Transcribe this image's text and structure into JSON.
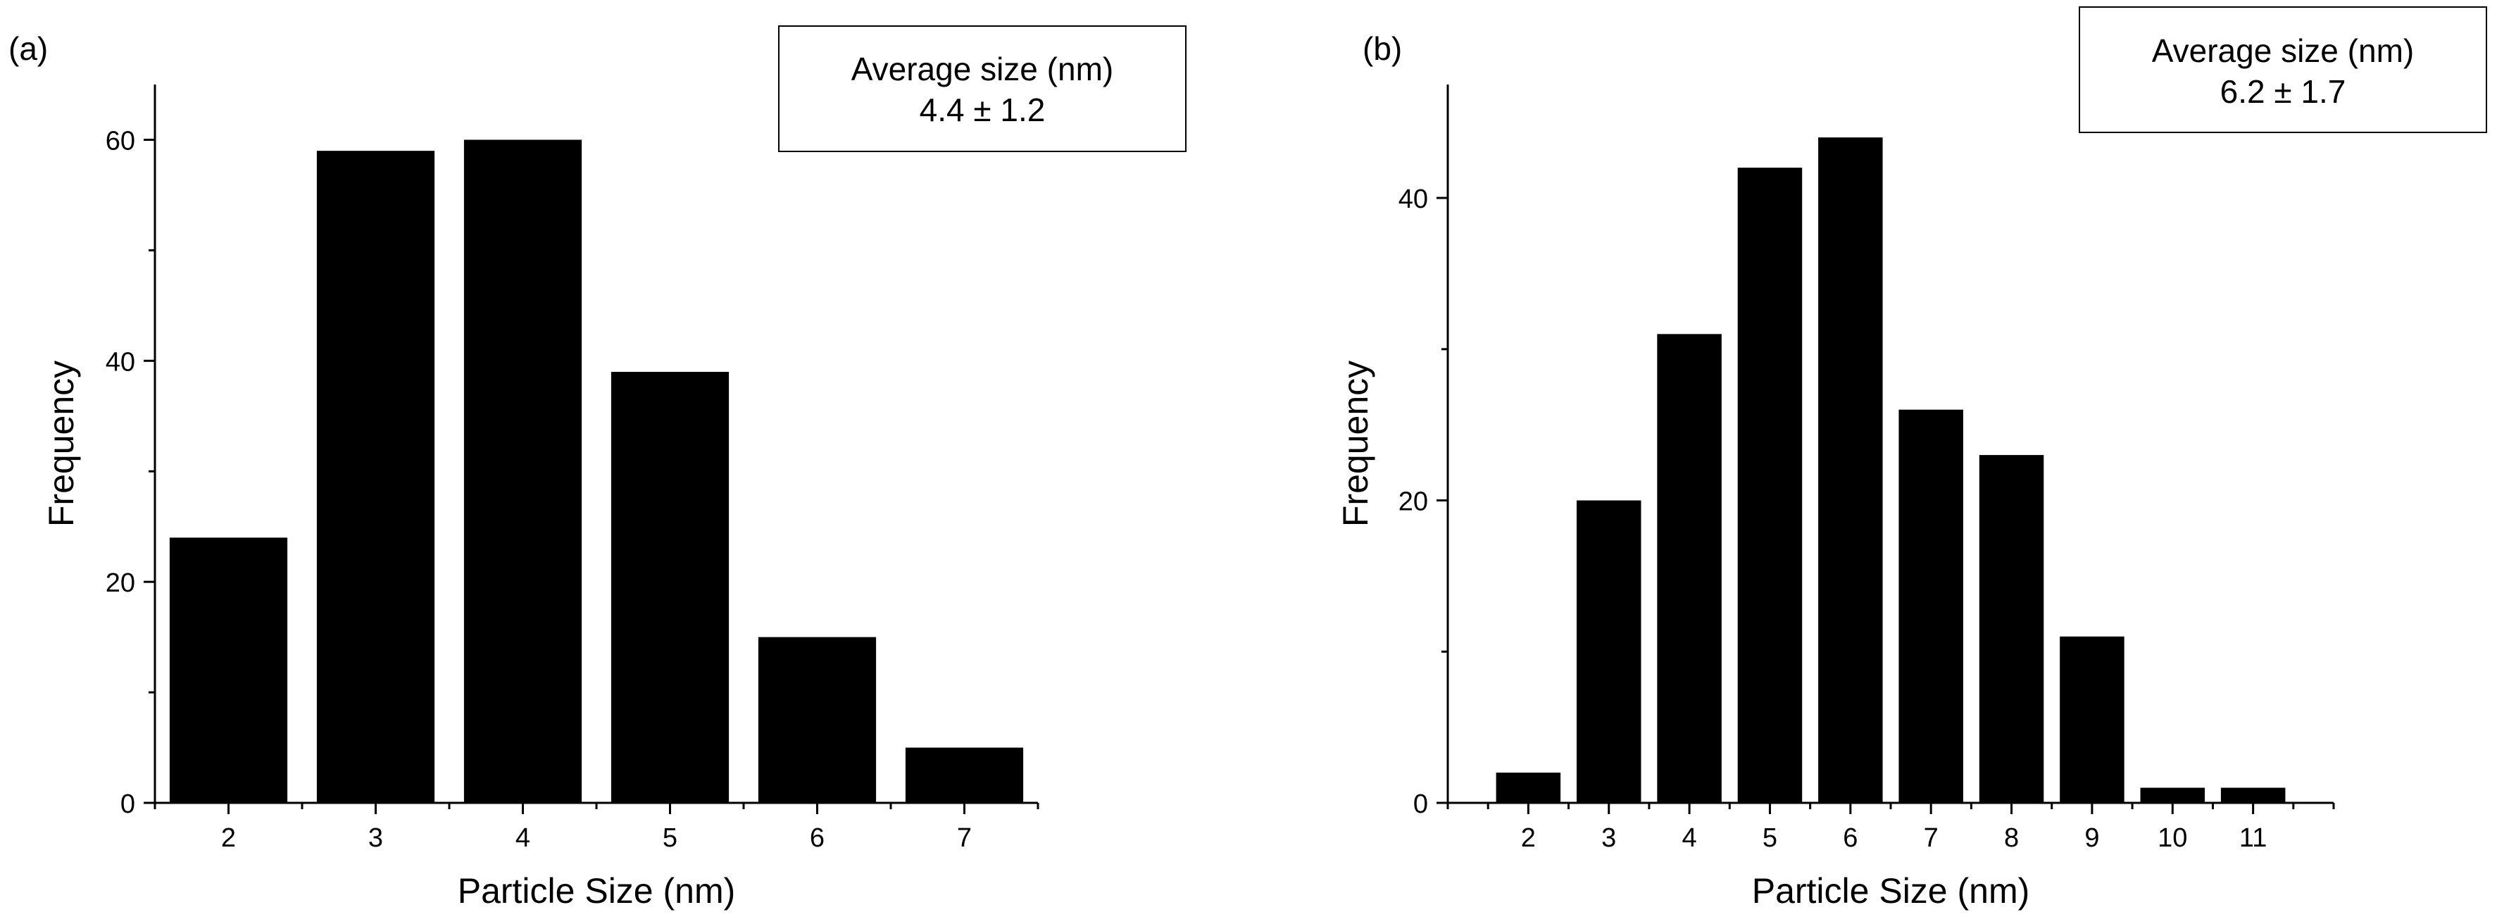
{
  "chart_data": [
    {
      "type": "bar",
      "panel_label": "(a)",
      "categories": [
        "2",
        "3",
        "4",
        "5",
        "6",
        "7"
      ],
      "values": [
        24,
        59,
        60,
        39,
        15,
        5
      ],
      "xlabel": "Particle Size (nm)",
      "ylabel": "Frequency",
      "ylim": [
        0,
        65
      ],
      "xlim": [
        1.5,
        7.5
      ],
      "y_major_ticks": [
        0,
        20,
        40,
        60
      ],
      "y_minor_ticks": [
        10,
        30,
        50
      ],
      "x_ticks": [
        2,
        3,
        4,
        5,
        6,
        7
      ],
      "bar_color": "#000000",
      "stats_box": {
        "title": "Average size (nm)",
        "value": "4.4 ± 1.2"
      }
    },
    {
      "type": "bar",
      "panel_label": "(b)",
      "categories": [
        "2",
        "3",
        "4",
        "5",
        "6",
        "7",
        "8",
        "9",
        "10",
        "11"
      ],
      "values": [
        2,
        20,
        31,
        42,
        44,
        26,
        23,
        11,
        1,
        1
      ],
      "xlabel": "Particle Size (nm)",
      "ylabel": "Frequency",
      "ylim": [
        0,
        47.5
      ],
      "xlim": [
        1.0,
        12.0
      ],
      "y_major_ticks": [
        0,
        20,
        40
      ],
      "y_minor_ticks": [
        10,
        30
      ],
      "x_ticks": [
        2,
        3,
        4,
        5,
        6,
        7,
        8,
        9,
        10,
        11
      ],
      "bar_color": "#000000",
      "stats_box": {
        "title": "Average size (nm)",
        "value": "6.2 ± 1.7"
      }
    }
  ]
}
